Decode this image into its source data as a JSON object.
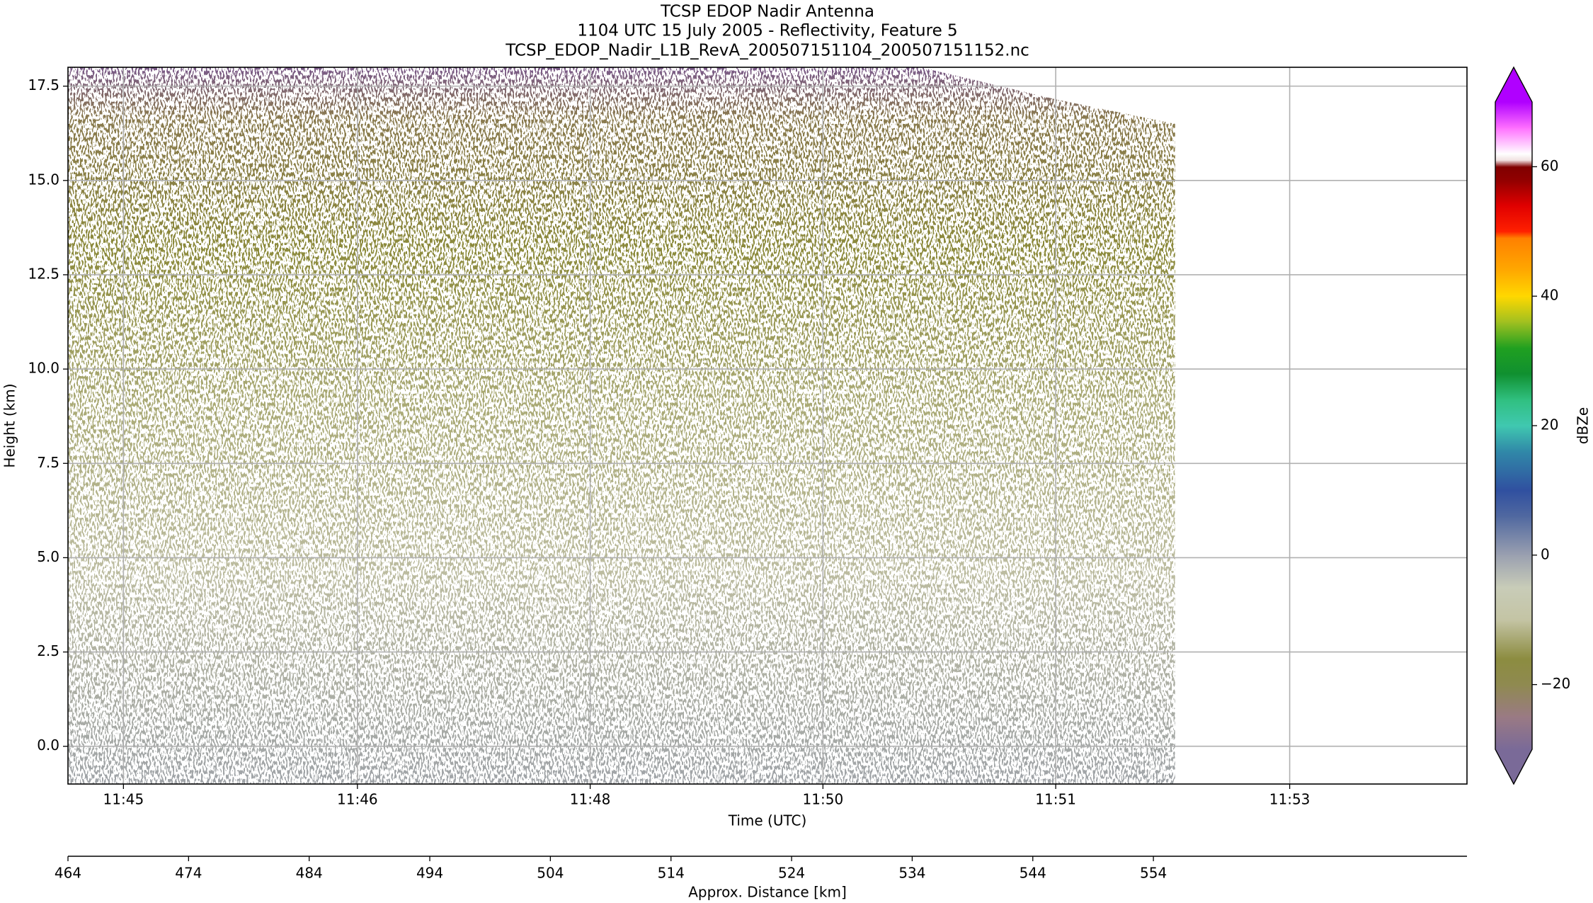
{
  "chart_data": {
    "type": "curtain",
    "title": [
      "TCSP EDOP Nadir Antenna",
      "1104 UTC 15 July 2005 - Reflectivity, Feature 5",
      "TCSP_EDOP_Nadir_L1B_RevA_200507151104_200507151152.nc"
    ],
    "xlabel": "Time (UTC)",
    "x2label": "Approx. Distance [km]",
    "ylabel": "Height (km)",
    "colorbar_label": "dBZe",
    "xlim": [
      464,
      580
    ],
    "xticks": [
      {
        "value": 468.6,
        "label": "11:45"
      },
      {
        "value": 488,
        "label": "11:46"
      },
      {
        "value": 507.3,
        "label": "11:48"
      },
      {
        "value": 526.6,
        "label": "11:50"
      },
      {
        "value": 545.9,
        "label": "11:51"
      },
      {
        "value": 565.3,
        "label": "11:53"
      }
    ],
    "x2lim": [
      464,
      580
    ],
    "x2ticks": [
      464,
      474,
      484,
      494,
      504,
      514,
      524,
      534,
      544,
      554
    ],
    "ylim": [
      -1,
      18
    ],
    "yticks": [
      {
        "value": 0,
        "label": "0.0"
      },
      2.5,
      {
        "value": 5,
        "label": "5.0"
      },
      7.5,
      {
        "value": 10,
        "label": "10.0"
      },
      12.5,
      {
        "value": 15,
        "label": "15.0"
      },
      17.5
    ],
    "grid": true,
    "region": {
      "x": [
        464,
        534.7,
        540,
        545.9,
        555.8
      ],
      "top": [
        18,
        18,
        17.6,
        17.15,
        16.5
      ]
    },
    "clim": [
      -30,
      70
    ],
    "cticks": [
      {
        "value": -20,
        "label": "−20"
      },
      0,
      20,
      40,
      60
    ],
    "colormap": [
      {
        "value": -30,
        "color": "#7a6a98"
      },
      {
        "value": -25,
        "color": "#9a7a84"
      },
      {
        "value": -20,
        "color": "#8f8a50"
      },
      {
        "value": -16,
        "color": "#8c8c40"
      },
      {
        "value": -10,
        "color": "#c4c4a4"
      },
      {
        "value": -5,
        "color": "#c8ccb8"
      },
      {
        "value": 0,
        "color": "#9aa0b0"
      },
      {
        "value": 6,
        "color": "#5068a0"
      },
      {
        "value": 10,
        "color": "#3050a0"
      },
      {
        "value": 16,
        "color": "#3088a8"
      },
      {
        "value": 20,
        "color": "#40c8b0"
      },
      {
        "value": 24,
        "color": "#30c080"
      },
      {
        "value": 28,
        "color": "#109030"
      },
      {
        "value": 32,
        "color": "#20a020"
      },
      {
        "value": 36,
        "color": "#a0c020"
      },
      {
        "value": 40,
        "color": "#ffd800"
      },
      {
        "value": 44,
        "color": "#ffa800"
      },
      {
        "value": 49,
        "color": "#ff8000"
      },
      {
        "value": 50,
        "color": "#ff2000"
      },
      {
        "value": 54,
        "color": "#e00000"
      },
      {
        "value": 58,
        "color": "#900000"
      },
      {
        "value": 60,
        "color": "#800000"
      },
      {
        "value": 61,
        "color": "#f0e0e0"
      },
      {
        "value": 62,
        "color": "#ffffff"
      },
      {
        "value": 66,
        "color": "#ff70ff"
      },
      {
        "value": 70,
        "color": "#b000ff"
      }
    ]
  }
}
